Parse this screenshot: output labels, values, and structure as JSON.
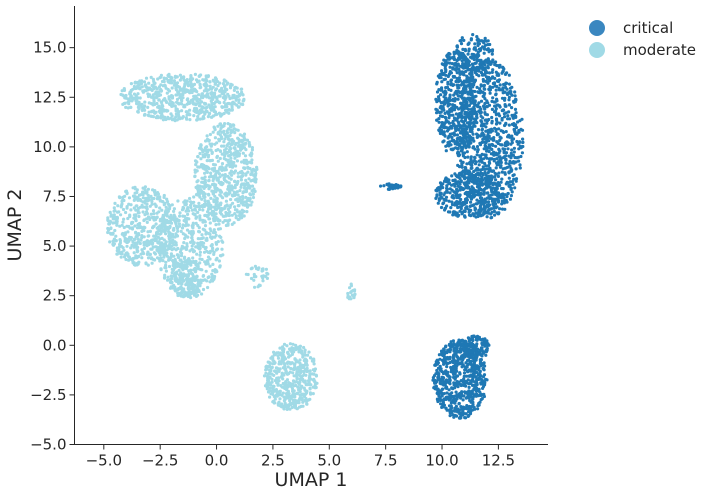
{
  "chart_data": {
    "type": "scatter",
    "title": "",
    "xlabel": "UMAP 1",
    "ylabel": "UMAP 2",
    "xlim": [
      -6.3,
      14.7
    ],
    "ylim": [
      -5.0,
      17.1
    ],
    "xticks": [
      -5.0,
      -2.5,
      0.0,
      2.5,
      5.0,
      7.5,
      10.0,
      12.5
    ],
    "xtick_labels": [
      "−5.0",
      "−2.5",
      "0.0",
      "2.5",
      "5.0",
      "7.5",
      "10.0",
      "12.5"
    ],
    "yticks": [
      -5.0,
      -2.5,
      0.0,
      2.5,
      5.0,
      7.5,
      10.0,
      12.5,
      15.0
    ],
    "ytick_labels": [
      "−5.0",
      "−2.5",
      "0.0",
      "2.5",
      "5.0",
      "7.5",
      "10.0",
      "12.5",
      "15.0"
    ],
    "grid": false,
    "legend_position": "outside-top-right",
    "series": [
      {
        "name": "critical",
        "color": "#1f78b4",
        "legend_color": "#3a87c0",
        "clusters": [
          {
            "cx": 12.1,
            "cy": 10.4,
            "rx": 1.5,
            "ry": 4.0,
            "n": 900
          },
          {
            "cx": 10.6,
            "cy": 12.2,
            "rx": 0.9,
            "ry": 2.7,
            "n": 500
          },
          {
            "cx": 11.4,
            "cy": 14.7,
            "rx": 0.9,
            "ry": 1.0,
            "n": 150
          },
          {
            "cx": 11.2,
            "cy": 7.6,
            "rx": 1.5,
            "ry": 1.2,
            "n": 350
          },
          {
            "cx": 10.8,
            "cy": -1.7,
            "rx": 1.2,
            "ry": 2.0,
            "n": 650
          },
          {
            "cx": 11.5,
            "cy": -0.1,
            "rx": 0.6,
            "ry": 0.6,
            "n": 120
          },
          {
            "cx": 7.7,
            "cy": 8.0,
            "rx": 0.5,
            "ry": 0.15,
            "n": 35
          }
        ]
      },
      {
        "name": "moderate",
        "color": "#a0dae6",
        "legend_color": "#a0dae6",
        "clusters": [
          {
            "cx": -1.5,
            "cy": 12.5,
            "rx": 2.8,
            "ry": 1.2,
            "n": 650
          },
          {
            "cx": 0.4,
            "cy": 8.6,
            "rx": 1.4,
            "ry": 2.6,
            "n": 650
          },
          {
            "cx": -3.3,
            "cy": 6.0,
            "rx": 1.6,
            "ry": 2.0,
            "n": 500
          },
          {
            "cx": -1.2,
            "cy": 5.0,
            "rx": 1.5,
            "ry": 2.6,
            "n": 500
          },
          {
            "cx": -1.4,
            "cy": 3.4,
            "rx": 0.7,
            "ry": 1.0,
            "n": 150
          },
          {
            "cx": 3.3,
            "cy": -1.6,
            "rx": 1.2,
            "ry": 1.7,
            "n": 450
          },
          {
            "cx": 1.8,
            "cy": 3.5,
            "rx": 0.5,
            "ry": 0.6,
            "n": 30
          },
          {
            "cx": 6.0,
            "cy": 2.5,
            "rx": 0.2,
            "ry": 0.6,
            "n": 20
          }
        ]
      }
    ]
  }
}
